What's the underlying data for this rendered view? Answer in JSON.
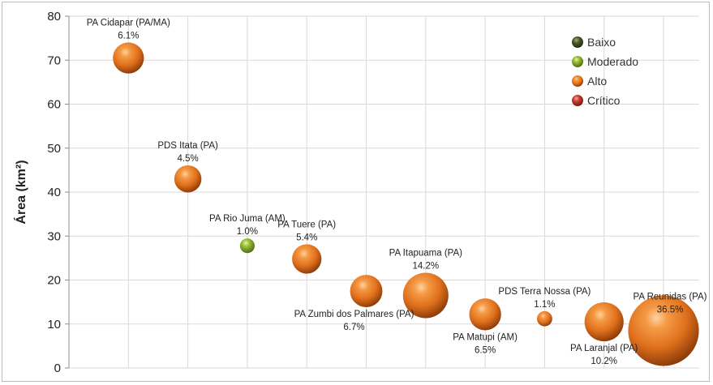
{
  "chart_data": {
    "type": "bubble",
    "ylabel": "Área (km²)",
    "ylim": [
      0,
      80
    ],
    "yticks": [
      0,
      10,
      20,
      30,
      40,
      50,
      60,
      70,
      80
    ],
    "xlim": [
      0,
      10.6
    ],
    "grid": true,
    "legend_position": "top-right",
    "legend": [
      {
        "name": "Baixo",
        "color": "#3f4a23"
      },
      {
        "name": "Moderado",
        "color": "#8fae2e"
      },
      {
        "name": "Alto",
        "color": "#ee7a22"
      },
      {
        "name": "Crítico",
        "color": "#c0392b"
      }
    ],
    "points": [
      {
        "name": "PA Cidapar (PA/MA)",
        "pct": "6.1%",
        "x": 1.0,
        "y": 70.5,
        "size": 6.1,
        "category": "Alto"
      },
      {
        "name": "PDS Itata (PA)",
        "pct": "4.5%",
        "x": 2.0,
        "y": 43,
        "size": 4.5,
        "category": "Alto"
      },
      {
        "name": "PA Rio Juma (AM)",
        "pct": "1.0%",
        "x": 3.0,
        "y": 27.8,
        "size": 1.0,
        "category": "Moderado"
      },
      {
        "name": "PA Tuere (PA)",
        "pct": "5.4%",
        "x": 4.0,
        "y": 24.8,
        "size": 5.4,
        "category": "Alto"
      },
      {
        "name": "PA Zumbi dos Palmares (PA)",
        "pct": "6.7%",
        "x": 5.0,
        "y": 17.5,
        "size": 6.7,
        "category": "Alto"
      },
      {
        "name": "PA Itapuama (PA)",
        "pct": "14.2%",
        "x": 6.0,
        "y": 16.5,
        "size": 14.2,
        "category": "Alto"
      },
      {
        "name": "PA Matupi (AM)",
        "pct": "6.5%",
        "x": 7.0,
        "y": 12.2,
        "size": 6.5,
        "category": "Alto"
      },
      {
        "name": "PDS Terra Nossa (PA)",
        "pct": "1.1%",
        "x": 8.0,
        "y": 11.2,
        "size": 1.1,
        "category": "Alto"
      },
      {
        "name": "PA Laranjal (PA)",
        "pct": "10.2%",
        "x": 9.0,
        "y": 10.5,
        "size": 10.2,
        "category": "Alto"
      },
      {
        "name": "PA Reunidas (PA)",
        "pct": "36.5%",
        "x": 10.0,
        "y": 8.5,
        "size": 36.5,
        "category": "Alto"
      }
    ]
  }
}
